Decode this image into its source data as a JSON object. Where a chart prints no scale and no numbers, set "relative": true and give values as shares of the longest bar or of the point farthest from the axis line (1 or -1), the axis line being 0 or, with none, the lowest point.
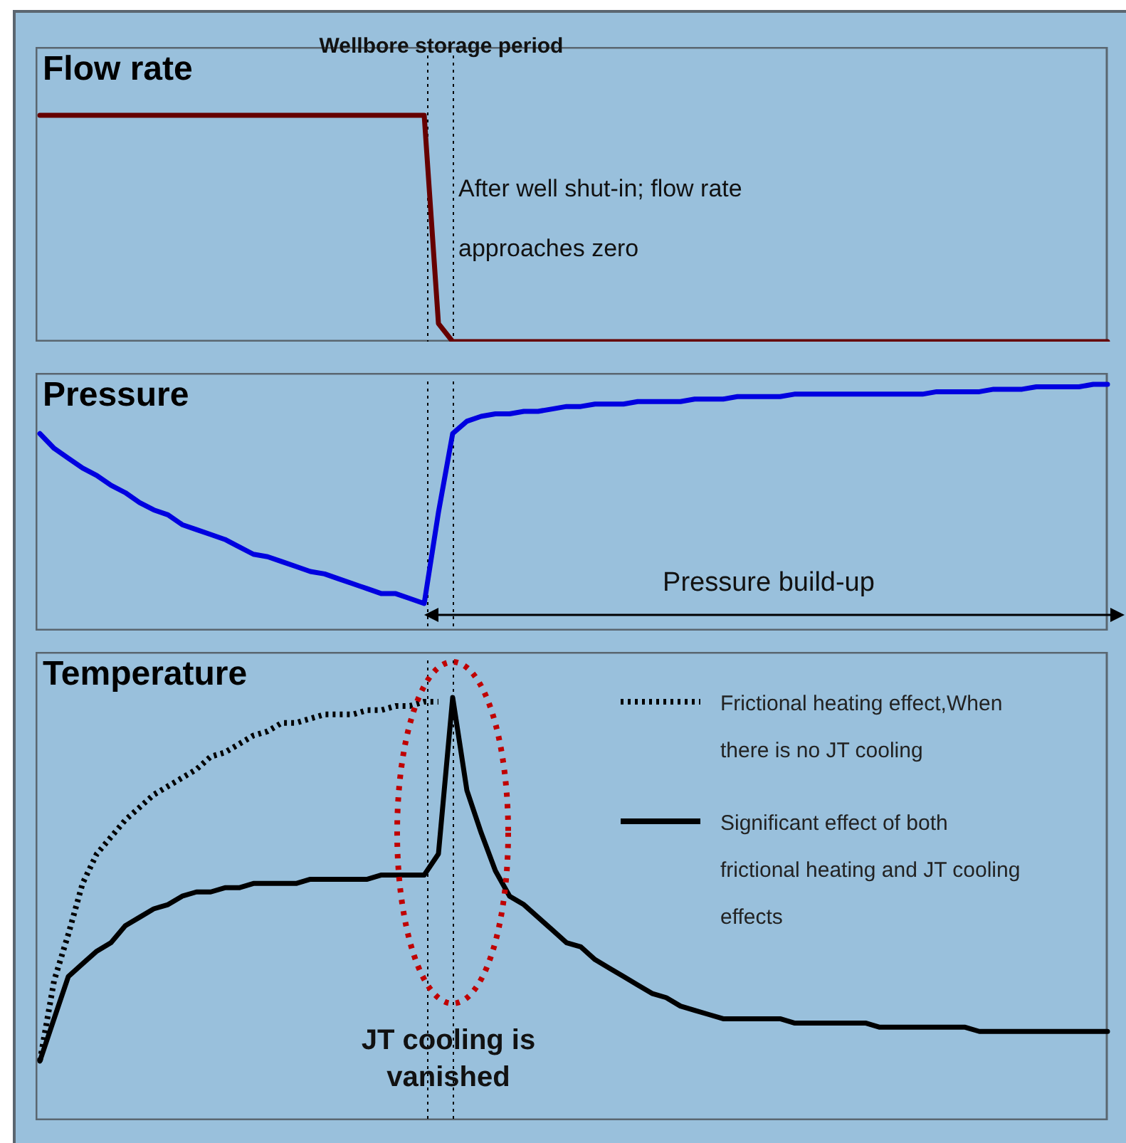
{
  "chart_data": [
    {
      "type": "line",
      "title": "Flow rate",
      "relative": true,
      "tick_labels": false,
      "marker": "none",
      "color": "#660000",
      "categories": [
        null,
        null,
        null,
        null,
        null,
        null,
        null,
        null,
        null,
        null,
        null,
        null,
        null,
        null,
        null,
        null,
        null,
        null,
        null,
        null,
        null,
        null,
        null,
        null,
        null,
        null,
        null,
        null,
        null,
        null,
        null,
        null,
        null,
        null,
        null,
        null,
        null,
        null,
        null,
        null,
        null,
        null,
        null,
        null,
        null,
        null,
        null,
        null,
        null,
        null,
        null,
        null,
        null,
        null,
        null,
        null,
        null,
        null,
        null,
        null,
        null,
        null,
        null,
        null,
        null,
        null,
        null,
        null,
        null,
        null,
        null,
        null,
        null,
        null,
        null,
        null
      ],
      "values": [
        1,
        1,
        1,
        1,
        1,
        1,
        1,
        1,
        1,
        1,
        1,
        1,
        1,
        1,
        1,
        1,
        1,
        1,
        1,
        1,
        1,
        1,
        1,
        1,
        1,
        1,
        1,
        1,
        0.08,
        0,
        0,
        0,
        0,
        0,
        0,
        0,
        0,
        0,
        0,
        0,
        0,
        0,
        0,
        0,
        0,
        0,
        0,
        0,
        0,
        0,
        0,
        0,
        0,
        0,
        0,
        0,
        0,
        0,
        0,
        0,
        0,
        0,
        0,
        0,
        0,
        0,
        0,
        0,
        0,
        0,
        0,
        0,
        0,
        0,
        0,
        0
      ],
      "annotations": [
        "Wellbore storage period",
        "After well shut-in; flow rate approaches zero"
      ]
    },
    {
      "type": "line",
      "title": "Pressure",
      "relative": true,
      "tick_labels": false,
      "marker": "none",
      "color": "#0000e0",
      "categories": [
        null,
        null,
        null,
        null,
        null,
        null,
        null,
        null,
        null,
        null,
        null,
        null,
        null,
        null,
        null,
        null,
        null,
        null,
        null,
        null,
        null,
        null,
        null,
        null,
        null,
        null,
        null,
        null,
        null,
        null,
        null,
        null,
        null,
        null,
        null,
        null,
        null,
        null,
        null,
        null,
        null,
        null,
        null,
        null,
        null,
        null,
        null,
        null,
        null,
        null,
        null,
        null,
        null,
        null,
        null,
        null,
        null,
        null,
        null,
        null,
        null,
        null,
        null,
        null,
        null,
        null,
        null,
        null,
        null,
        null,
        null,
        null,
        null,
        null,
        null,
        null
      ],
      "values": [
        0.8,
        0.74,
        0.7,
        0.66,
        0.63,
        0.59,
        0.56,
        0.52,
        0.49,
        0.47,
        0.43,
        0.41,
        0.39,
        0.37,
        0.34,
        0.31,
        0.3,
        0.28,
        0.26,
        0.24,
        0.23,
        0.21,
        0.19,
        0.17,
        0.15,
        0.15,
        0.13,
        0.11,
        0.48,
        0.8,
        0.85,
        0.87,
        0.88,
        0.88,
        0.89,
        0.89,
        0.9,
        0.91,
        0.91,
        0.92,
        0.92,
        0.92,
        0.93,
        0.93,
        0.93,
        0.93,
        0.94,
        0.94,
        0.94,
        0.95,
        0.95,
        0.95,
        0.95,
        0.96,
        0.96,
        0.96,
        0.96,
        0.96,
        0.96,
        0.96,
        0.96,
        0.96,
        0.96,
        0.97,
        0.97,
        0.97,
        0.97,
        0.98,
        0.98,
        0.98,
        0.99,
        0.99,
        0.99,
        0.99,
        1,
        1
      ],
      "annotations": [
        "Pressure build-up"
      ]
    },
    {
      "type": "line",
      "title": "Temperature",
      "relative": true,
      "tick_labels": false,
      "marker": "none",
      "legend": "top right",
      "categories": [
        null,
        null,
        null,
        null,
        null,
        null,
        null,
        null,
        null,
        null,
        null,
        null,
        null,
        null,
        null,
        null,
        null,
        null,
        null,
        null,
        null,
        null,
        null,
        null,
        null,
        null,
        null,
        null,
        null,
        null,
        null,
        null,
        null,
        null,
        null,
        null,
        null,
        null,
        null,
        null,
        null,
        null,
        null,
        null,
        null,
        null,
        null,
        null,
        null,
        null,
        null,
        null,
        null,
        null,
        null,
        null,
        null,
        null,
        null,
        null,
        null,
        null,
        null,
        null,
        null,
        null,
        null,
        null,
        null,
        null,
        null,
        null,
        null,
        null,
        null,
        null
      ],
      "series": [
        {
          "name": "Frictional heating effect,When there is no JT cooling",
          "color": "#000000",
          "line_style": "dotted",
          "values": [
            0.14,
            0.33,
            0.44,
            0.56,
            0.63,
            0.67,
            0.71,
            0.74,
            0.77,
            0.79,
            0.81,
            0.83,
            0.86,
            0.87,
            0.89,
            0.91,
            0.92,
            0.94,
            0.94,
            0.95,
            0.96,
            0.96,
            0.96,
            0.97,
            0.97,
            0.98,
            0.98,
            0.99,
            0.99,
            null,
            null,
            null,
            null,
            null,
            null,
            null,
            null,
            null,
            null,
            null,
            null,
            null,
            null,
            null,
            null,
            null,
            null,
            null,
            null,
            null,
            null,
            null,
            null,
            null,
            null,
            null,
            null,
            null,
            null,
            null,
            null,
            null,
            null,
            null,
            null,
            null,
            null,
            null,
            null,
            null,
            null,
            null,
            null,
            null,
            null,
            null
          ]
        },
        {
          "name": "Significant effect of both frictional heating and JT cooling effects",
          "color": "#000000",
          "line_style": "solid",
          "values": [
            0.14,
            0.24,
            0.34,
            0.37,
            0.4,
            0.42,
            0.46,
            0.48,
            0.5,
            0.51,
            0.53,
            0.54,
            0.54,
            0.55,
            0.55,
            0.56,
            0.56,
            0.56,
            0.56,
            0.57,
            0.57,
            0.57,
            0.57,
            0.57,
            0.58,
            0.58,
            0.58,
            0.58,
            0.63,
            1,
            0.78,
            0.68,
            0.59,
            0.53,
            0.51,
            0.48,
            0.45,
            0.42,
            0.41,
            0.38,
            0.36,
            0.34,
            0.32,
            0.3,
            0.29,
            0.27,
            0.26,
            0.25,
            0.24,
            0.24,
            0.24,
            0.24,
            0.24,
            0.23,
            0.23,
            0.23,
            0.23,
            0.23,
            0.23,
            0.22,
            0.22,
            0.22,
            0.22,
            0.22,
            0.22,
            0.22,
            0.21,
            0.21,
            0.21,
            0.21,
            0.21,
            0.21,
            0.21,
            0.21,
            0.21,
            0.21
          ]
        }
      ],
      "annotations": [
        "JT cooling is vanished"
      ]
    }
  ]
}
